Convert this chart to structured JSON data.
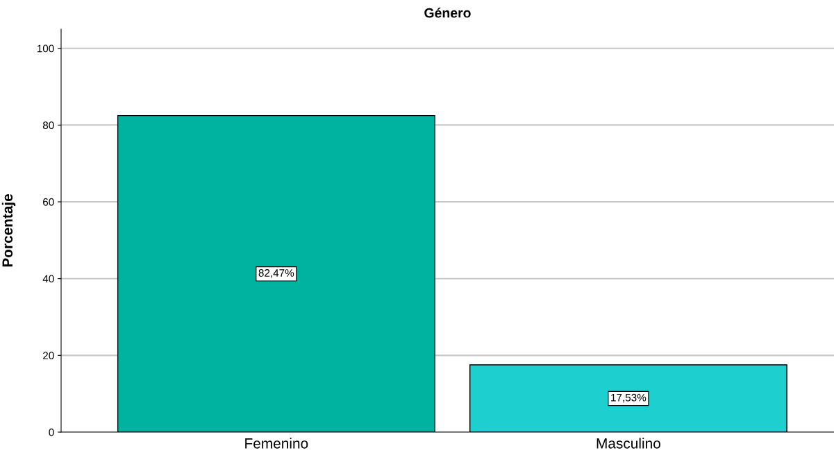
{
  "chart_data": {
    "type": "bar",
    "title": "Género",
    "ylabel": "Porcentaje",
    "categories": [
      "Femenino",
      "Masculino"
    ],
    "values": [
      82.47,
      17.53
    ],
    "colors": [
      "#00b2a0",
      "#1ecfcf"
    ],
    "value_labels": [
      "82,47%",
      "17,53%"
    ],
    "ylim": [
      0,
      105
    ],
    "yticks": [
      0,
      20,
      40,
      60,
      80,
      100
    ],
    "grid": "y",
    "legend": false
  }
}
